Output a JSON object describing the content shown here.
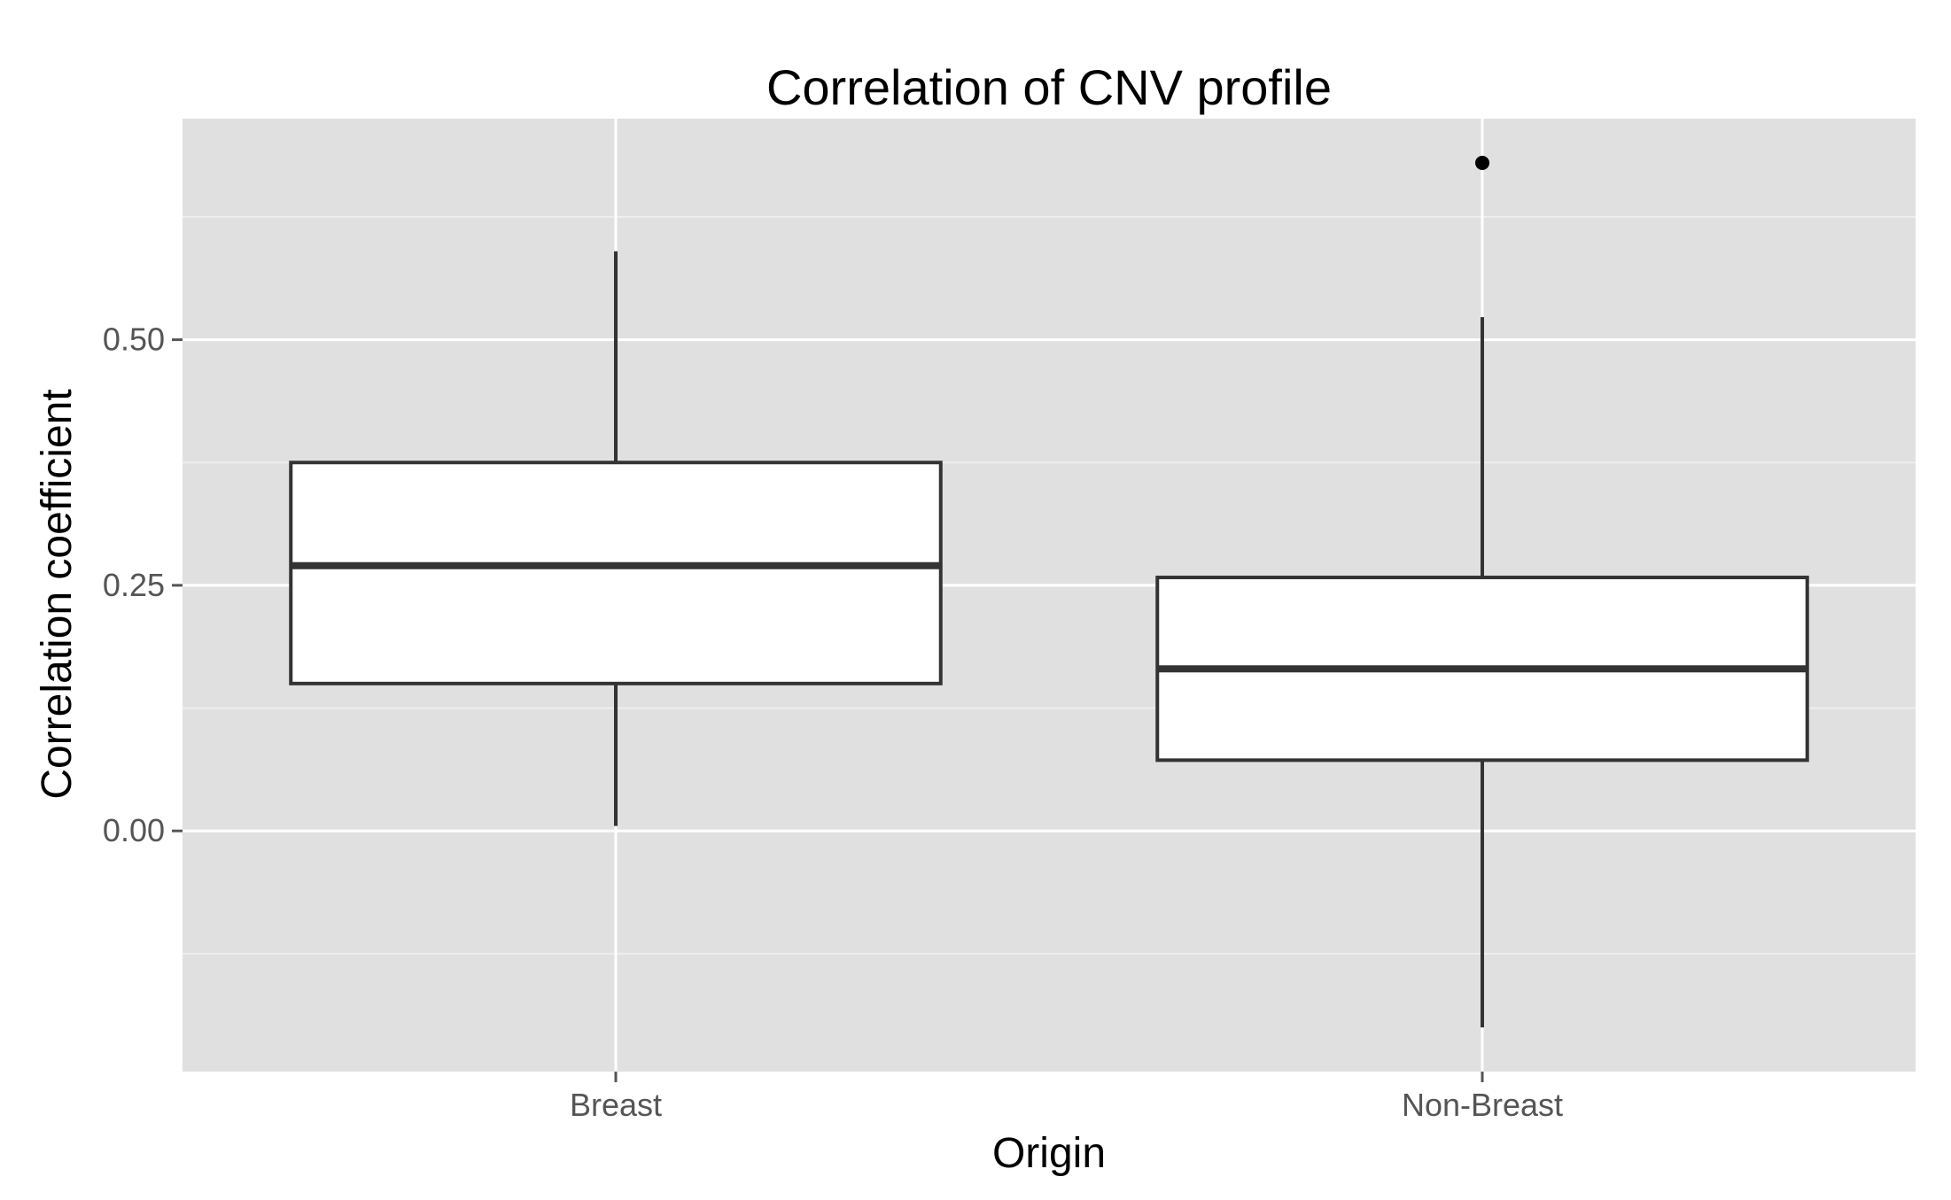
{
  "chart_data": {
    "type": "boxplot",
    "title": "Correlation of CNV profile",
    "xlabel": "Origin",
    "ylabel": "Correlation coefficient",
    "categories": [
      "Breast",
      "Non-Breast"
    ],
    "ylim": [
      -0.245,
      0.725
    ],
    "yticks": [
      0.0,
      0.25,
      0.5
    ],
    "ytick_labels": [
      "0.00",
      "0.25",
      "0.50"
    ],
    "grid": true,
    "boxes": [
      {
        "category": "Breast",
        "whisker_low": 0.005,
        "q1": 0.15,
        "median": 0.27,
        "q3": 0.375,
        "whisker_high": 0.59,
        "outliers": []
      },
      {
        "category": "Non-Breast",
        "whisker_low": -0.2,
        "q1": 0.072,
        "median": 0.165,
        "q3": 0.258,
        "whisker_high": 0.523,
        "outliers": [
          0.68
        ]
      }
    ],
    "colors": {
      "panel": "#e0e0e0",
      "grid_major": "#ffffff",
      "grid_minor": "#eeeeee",
      "box_fill": "#ffffff",
      "box_stroke": "#333333",
      "tick": "#555555"
    }
  }
}
